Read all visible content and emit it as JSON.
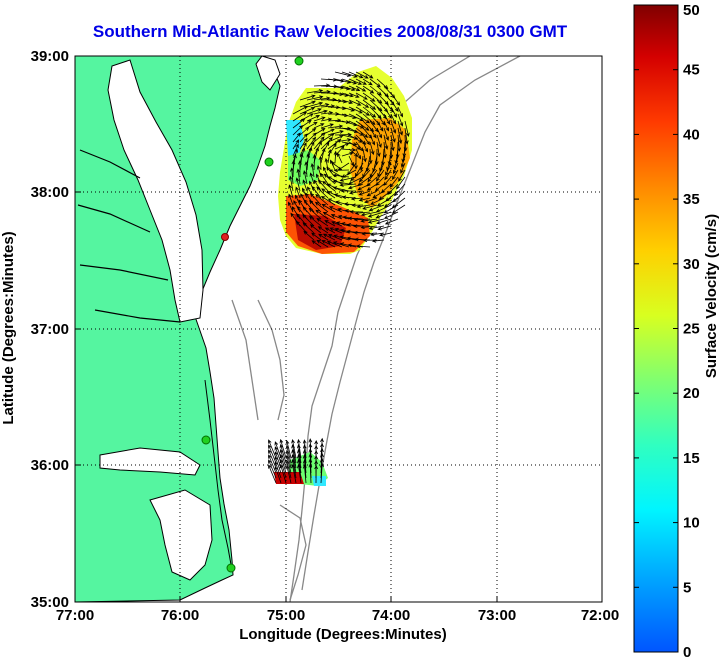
{
  "title": "Southern Mid-Atlantic Raw Velocities 2008/08/31 0300 GMT",
  "axes": {
    "xlabel": "Longitude (Degrees:Minutes)",
    "ylabel": "Latitude (Degrees:Minutes)",
    "xticks": [
      "77:00",
      "76:00",
      "75:00",
      "74:00",
      "73:00",
      "72:00"
    ],
    "yticks": [
      "39:00",
      "38:00",
      "37:00",
      "36:00",
      "35:00"
    ]
  },
  "colorbar": {
    "label": "Surface Velocity (cm/s)",
    "ticks": [
      "0",
      "5",
      "10",
      "15",
      "20",
      "25",
      "30",
      "35",
      "40",
      "45",
      "50"
    ],
    "min": 0,
    "max": 50
  },
  "colors": {
    "title": "#0000e6",
    "land": "#55f5a0",
    "bathymetry": "#888888",
    "arrows": "#000000"
  },
  "chart_data": {
    "type": "map",
    "xlim_deg_west": [
      77,
      72
    ],
    "ylim_deg_north": [
      35,
      39
    ],
    "grid": true,
    "stations": [
      {
        "lon": -75.12,
        "lat": 38.95,
        "color": "green"
      },
      {
        "lon": -75.16,
        "lat": 38.22,
        "color": "green"
      },
      {
        "lon": -75.57,
        "lat": 37.68,
        "color": "red"
      },
      {
        "lon": -75.72,
        "lat": 36.19,
        "color": "green"
      },
      {
        "lon": -75.5,
        "lat": 35.26,
        "color": "green"
      }
    ],
    "northern_field_range_cm_s": [
      12,
      50
    ],
    "southern_field_range_cm_s": [
      18,
      50
    ]
  }
}
